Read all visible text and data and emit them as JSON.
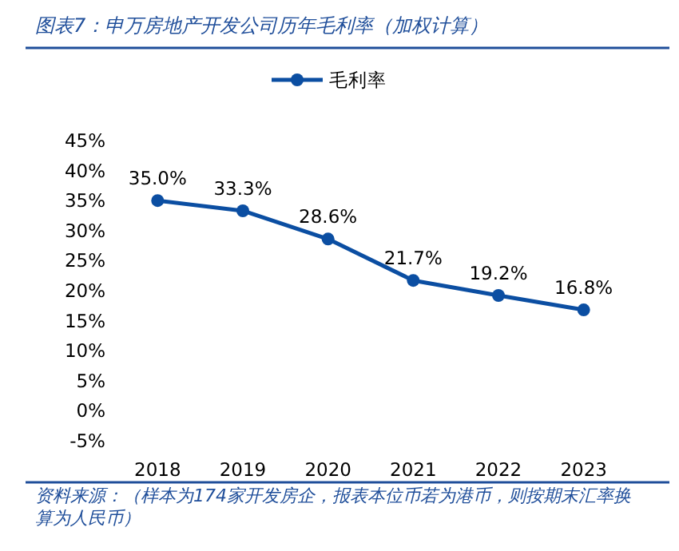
{
  "chart_data": {
    "type": "line",
    "title": "图表7：申万房地产开发公司历年毛利率（加权计算）",
    "categories": [
      "2018",
      "2019",
      "2020",
      "2021",
      "2022",
      "2023"
    ],
    "series": [
      {
        "name": "毛利率",
        "color": "#0b4ea2",
        "values": [
          35.0,
          33.3,
          28.6,
          21.7,
          19.2,
          16.8
        ],
        "value_labels": [
          "35.0%",
          "33.3%",
          "28.6%",
          "21.7%",
          "19.2%",
          "16.8%"
        ]
      }
    ],
    "ylim": [
      -5,
      45
    ],
    "yticks": [
      {
        "value": -5,
        "label": "-5%"
      },
      {
        "value": 0,
        "label": "0%"
      },
      {
        "value": 5,
        "label": "5%"
      },
      {
        "value": 10,
        "label": "10%"
      },
      {
        "value": 15,
        "label": "15%"
      },
      {
        "value": 20,
        "label": "20%"
      },
      {
        "value": 25,
        "label": "25%"
      },
      {
        "value": 30,
        "label": "30%"
      },
      {
        "value": 35,
        "label": "35%"
      },
      {
        "value": 40,
        "label": "40%"
      },
      {
        "value": 45,
        "label": "45%"
      }
    ],
    "marker": "circle",
    "legend": "top",
    "grid": false,
    "annotations": [
      "资料来源：（样本为174家开发房企，报表本位币若为港币，则按期末汇率换算为人民币）"
    ]
  }
}
